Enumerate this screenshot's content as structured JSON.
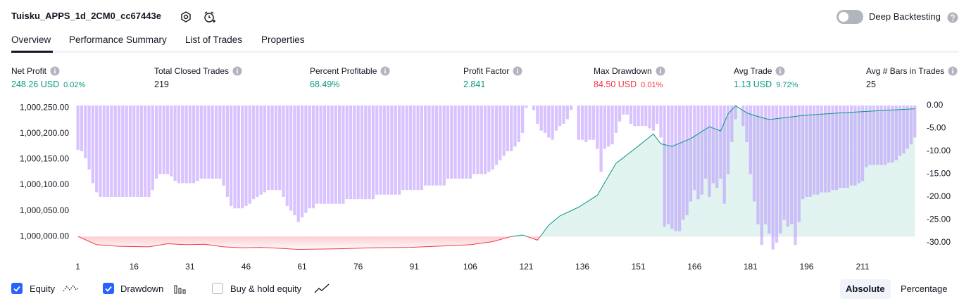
{
  "header": {
    "title": "Tuisku_APPS_1d_2CM0_cc67443e",
    "toggle_label": "Deep Backtesting"
  },
  "tabs": [
    "Overview",
    "Performance Summary",
    "List of Trades",
    "Properties"
  ],
  "stats": [
    {
      "label": "Net Profit",
      "value": "248.26 USD",
      "percent": "0.02%",
      "tone": "positive"
    },
    {
      "label": "Total Closed Trades",
      "value": "219",
      "tone": "neutral"
    },
    {
      "label": "Percent Profitable",
      "value": "68.49%",
      "tone": "positive"
    },
    {
      "label": "Profit Factor",
      "value": "2.841",
      "tone": "positive"
    },
    {
      "label": "Max Drawdown",
      "value": "84.50 USD",
      "percent": "0.01%",
      "tone": "negative"
    },
    {
      "label": "Avg Trade",
      "value": "1.13 USD",
      "percent": "9.72%",
      "tone": "positive"
    },
    {
      "label": "Avg # Bars in Trades",
      "value": "25",
      "tone": "neutral"
    }
  ],
  "chart_data": {
    "type": "bar_line",
    "xlim": [
      0.5,
      225.5
    ],
    "xticks": [
      1,
      16,
      31,
      46,
      61,
      76,
      91,
      106,
      121,
      136,
      151,
      166,
      181,
      196,
      211
    ],
    "ylim": [
      999973,
      1000257
    ],
    "yticks": [
      {
        "value": 1000000,
        "label": "1,000,000.00"
      },
      {
        "value": 1000050,
        "label": "1,000,050.00"
      },
      {
        "value": 1000100,
        "label": "1,000,100.00"
      },
      {
        "value": 1000150,
        "label": "1,000,150.00"
      },
      {
        "value": 1000200,
        "label": "1,000,200.00"
      },
      {
        "value": 1000250,
        "label": "1,000,250.00"
      }
    ],
    "y2lim": [
      -31.7,
      0.3
    ],
    "y2ticks": [
      {
        "value": 0,
        "label": "0.00"
      },
      {
        "value": -5,
        "label": "-5.00"
      },
      {
        "value": -10,
        "label": "-10.00"
      },
      {
        "value": -15,
        "label": "-15.00"
      },
      {
        "value": -20,
        "label": "-20.00"
      },
      {
        "value": -25,
        "label": "-25.00"
      },
      {
        "value": -30,
        "label": "-30.00"
      }
    ],
    "series": [
      {
        "name": "Equity",
        "type": "line",
        "visible": true,
        "color": "#089981",
        "negative_color": "#f23645",
        "x": [
          1,
          6,
          12,
          20,
          25,
          30,
          35,
          40,
          45,
          50,
          60,
          70,
          80,
          90,
          100,
          106,
          112,
          117,
          120,
          124,
          127,
          130,
          135,
          140,
          145,
          150,
          155,
          157,
          160,
          165,
          170,
          173,
          175,
          177,
          180,
          182,
          186,
          195,
          205,
          215,
          225
        ],
        "values": [
          1000000,
          999984,
          999981,
          999980,
          999986,
          999984,
          999985,
          999980,
          999978,
          999979,
          999975,
          999976,
          999978,
          999979,
          999982,
          999984,
          999990,
          1000000,
          1000003,
          999993,
          1000022,
          1000040,
          1000057,
          1000080,
          1000142,
          1000170,
          1000199,
          1000180,
          1000175,
          1000190,
          1000213,
          1000205,
          1000238,
          1000254,
          1000240,
          1000235,
          1000227,
          1000235,
          1000240,
          1000244,
          1000248
        ]
      },
      {
        "name": "Drawdown",
        "type": "bar",
        "axis": "y2",
        "visible": true,
        "color": "#b388ff",
        "x": [
          1,
          2,
          3,
          4,
          5,
          6,
          7,
          8,
          9,
          10,
          11,
          12,
          13,
          14,
          15,
          16,
          17,
          18,
          19,
          20,
          21,
          22,
          23,
          24,
          25,
          26,
          27,
          28,
          29,
          30,
          31,
          32,
          33,
          34,
          35,
          36,
          37,
          38,
          39,
          40,
          41,
          42,
          43,
          44,
          45,
          46,
          47,
          48,
          49,
          50,
          51,
          52,
          53,
          54,
          55,
          56,
          57,
          58,
          59,
          60,
          61,
          62,
          63,
          64,
          65,
          66,
          67,
          68,
          69,
          70,
          71,
          72,
          73,
          74,
          75,
          76,
          77,
          78,
          79,
          80,
          81,
          82,
          83,
          84,
          85,
          86,
          87,
          88,
          89,
          90,
          91,
          92,
          93,
          94,
          95,
          96,
          97,
          98,
          99,
          100,
          101,
          102,
          103,
          104,
          105,
          106,
          107,
          108,
          109,
          110,
          111,
          112,
          113,
          114,
          115,
          116,
          117,
          118,
          119,
          120,
          121,
          122,
          123,
          124,
          125,
          126,
          127,
          128,
          129,
          130,
          131,
          132,
          133,
          134,
          135,
          136,
          137,
          138,
          139,
          140,
          141,
          142,
          143,
          144,
          145,
          146,
          147,
          148,
          149,
          150,
          151,
          152,
          153,
          154,
          155,
          156,
          157,
          158,
          159,
          160,
          161,
          162,
          163,
          164,
          165,
          166,
          167,
          168,
          169,
          170,
          171,
          172,
          173,
          174,
          175,
          176,
          177,
          178,
          179,
          180,
          181,
          182,
          183,
          184,
          185,
          186,
          187,
          188,
          189,
          190,
          191,
          192,
          193,
          194,
          195,
          196,
          197,
          198,
          199,
          200,
          201,
          202,
          203,
          204,
          205,
          206,
          207,
          208,
          209,
          210,
          211,
          212,
          213,
          214,
          215,
          216,
          217,
          218,
          219,
          220,
          221,
          222,
          223,
          224,
          225
        ],
        "values": [
          -9.7,
          -10,
          -11.5,
          -14,
          -17,
          -19,
          -20,
          -20,
          -20,
          -20,
          -20,
          -20,
          -20,
          -20,
          -20,
          -20,
          -20,
          -20,
          -20,
          -20,
          -18.5,
          -16,
          -15,
          -15,
          -15,
          -15.5,
          -16.5,
          -17,
          -17,
          -17,
          -17,
          -17,
          -16.5,
          -16,
          -16,
          -16,
          -16,
          -16,
          -16,
          -17.5,
          -20,
          -22,
          -22.5,
          -22.5,
          -22.5,
          -22,
          -21.5,
          -20.5,
          -20,
          -19.5,
          -19,
          -18.5,
          -18.5,
          -18.5,
          -18.5,
          -20,
          -22,
          -23,
          -24,
          -25.5,
          -24.5,
          -23.5,
          -22.5,
          -22.5,
          -21.5,
          -21.5,
          -21.5,
          -21.5,
          -21.5,
          -21.5,
          -21.5,
          -21.5,
          -20.5,
          -20.5,
          -20.5,
          -20.5,
          -20.5,
          -20.5,
          -20.5,
          -20.5,
          -19.5,
          -19.5,
          -19.5,
          -19.5,
          -19.5,
          -19.5,
          -19.5,
          -18.5,
          -18.5,
          -18.5,
          -18.5,
          -18.5,
          -18.5,
          -17.5,
          -17.5,
          -17.5,
          -17.5,
          -17.5,
          -17.5,
          -16,
          -16,
          -16,
          -16,
          -16,
          -16,
          -16,
          -15,
          -15,
          -15,
          -15,
          -14.5,
          -14,
          -13,
          -12,
          -11,
          -10,
          -10,
          -9,
          -8,
          -6,
          -0.5,
          0,
          -1,
          -4,
          -5.5,
          -6,
          -7,
          -7.5,
          -5.5,
          -4.5,
          -4,
          -3,
          -1,
          0,
          -7.5,
          -7.5,
          -8,
          -7.5,
          -7.5,
          -9.5,
          -14.5,
          -9.5,
          -9,
          -8.5,
          -6,
          -3.5,
          -2,
          -2,
          -4,
          -4.5,
          -4.5,
          -4.5,
          -4.5,
          -5,
          -5.5,
          -4,
          -7,
          -26.5,
          -26,
          -27,
          -27.5,
          -27.5,
          -25,
          -24,
          -21,
          -18.5,
          -20.5,
          -19.5,
          -16,
          -20,
          -17,
          -18,
          -16,
          -21.5,
          -15,
          -8,
          -3,
          0,
          -4.5,
          -8,
          -15,
          -21,
          -26,
          -30.5,
          -26,
          -28,
          -31.5,
          -30,
          -28,
          -25,
          -26.5,
          -26,
          -30.5,
          -25.5,
          -20.5,
          -20,
          -20,
          -19.5,
          -19.5,
          -19,
          -19,
          -19,
          -18.5,
          -18.5,
          -18,
          -18,
          -18,
          -17.5,
          -17.5,
          -17,
          -16.5,
          -13.5,
          -13,
          -13,
          -13,
          -13,
          -13,
          -12.5,
          -12.5,
          -12,
          -11,
          -10.5,
          -9.5,
          -8.5,
          -7
        ]
      }
    ],
    "extra_legend": {
      "name": "Buy & hold equity",
      "visible": false
    }
  },
  "view_buttons": [
    {
      "label": "Absolute",
      "active": true
    },
    {
      "label": "Percentage",
      "active": false
    }
  ]
}
